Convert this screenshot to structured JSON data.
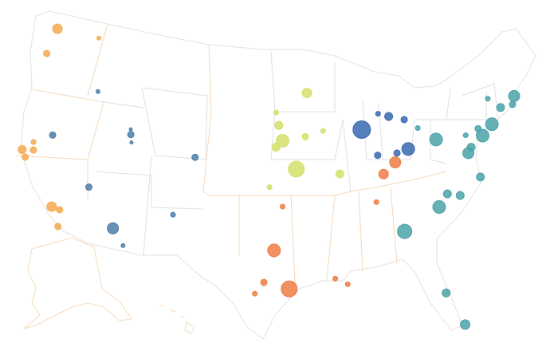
{
  "chart_data": {
    "type": "bubble-map",
    "series": [
      {
        "color": "#f5a94f",
        "lon": [
          -122.3,
          -117.4,
          -122.7,
          -121.5,
          -122.4,
          -121.9,
          -121.3,
          -118.2,
          -117.4,
          -117.2
        ],
        "lat": [
          47.6,
          47.7,
          45.5,
          38.6,
          37.8,
          37.3,
          38.0,
          34.1,
          34.0,
          32.7
        ],
        "values": [
          36,
          6,
          16,
          9,
          25,
          16,
          16,
          36,
          16,
          16
        ]
      },
      {
        "color": "#4e7ea8",
        "lon": [
          -116.2,
          -119.8,
          -112.0,
          -111.9,
          -111.7,
          -105.0,
          -115.1,
          -112.1,
          -110.9,
          -106.6
        ],
        "lat": [
          43.6,
          39.5,
          41.2,
          40.8,
          40.2,
          39.7,
          36.2,
          33.4,
          32.2,
          35.1
        ],
        "values": [
          6,
          16,
          4,
          16,
          4,
          16,
          16,
          49,
          6,
          9
        ]
      },
      {
        "color": "#d4e06c",
        "lon": [
          -93.3,
          -96.7,
          -96.4,
          -96.0,
          -96.7,
          -93.6,
          -91.7,
          -90.2,
          -94.6,
          -97.3
        ],
        "lat": [
          45.0,
          43.5,
          42.5,
          41.3,
          40.8,
          41.6,
          42.0,
          38.6,
          39.1,
          37.7
        ],
        "values": [
          36,
          9,
          25,
          64,
          25,
          16,
          9,
          25,
          100,
          9
        ]
      },
      {
        "color": "#ee7d44",
        "lon": [
          -96.0,
          -86.8,
          -96.8,
          -97.7,
          -95.4,
          -98.5,
          -91.2,
          -90.1,
          -85.8,
          -84.5
        ],
        "lat": [
          36.2,
          36.2,
          32.8,
          30.3,
          29.8,
          29.4,
          30.5,
          30.0,
          38.3,
          39.1
        ],
        "values": [
          9,
          9,
          64,
          16,
          100,
          9,
          9,
          9,
          36,
          49
        ]
      },
      {
        "color": "#3a69b0",
        "lon": [
          -87.6,
          -85.7,
          -84.6,
          -83.0,
          -84.2,
          -83.0,
          -86.2
        ],
        "lat": [
          41.9,
          43.0,
          42.7,
          42.3,
          39.8,
          40.0,
          39.8
        ],
        "values": [
          121,
          9,
          25,
          16,
          16,
          64,
          16
        ]
      },
      {
        "color": "#4ba3a8",
        "lon": [
          -81.7,
          -80.0,
          -76.9,
          -75.5,
          -74.0,
          -75.2,
          -76.6,
          -77.0,
          -73.8,
          -72.7,
          -71.4,
          -71.0,
          -76.3,
          -79.8,
          -78.6,
          -80.8,
          -84.4,
          -81.4,
          -80.2
        ],
        "lat": [
          41.5,
          40.4,
          40.3,
          40.6,
          40.7,
          40.0,
          39.3,
          38.9,
          42.7,
          41.8,
          41.8,
          42.4,
          36.9,
          36.1,
          35.8,
          35.2,
          33.7,
          28.5,
          25.8
        ],
        "values": [
          9,
          64,
          9,
          16,
          64,
          64,
          25,
          49,
          9,
          25,
          16,
          49,
          25,
          25,
          25,
          64,
          81,
          25,
          36
        ]
      }
    ]
  }
}
